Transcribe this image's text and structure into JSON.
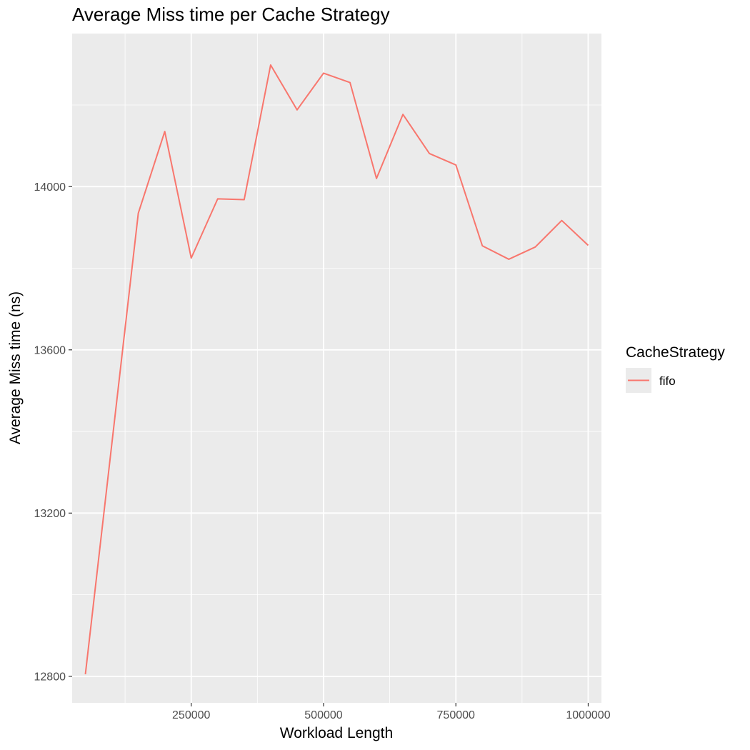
{
  "chart_data": {
    "type": "line",
    "title": "Average Miss time per Cache Strategy",
    "xlabel": "Workload Length",
    "ylabel": "Average Miss time (ns)",
    "xlim": [
      25000,
      1025000
    ],
    "ylim": [
      12735,
      14375
    ],
    "x_ticks": [
      250000,
      500000,
      750000,
      1000000
    ],
    "x_tick_labels": [
      "250000",
      "500000",
      "750000",
      "1000000"
    ],
    "y_ticks": [
      12800,
      13200,
      13600,
      14000
    ],
    "y_tick_labels": [
      "12800",
      "13200",
      "13600",
      "14000"
    ],
    "grid": true,
    "legend": {
      "title": "CacheStrategy",
      "position": "right"
    },
    "series": [
      {
        "name": "fifo",
        "color": "#F8766D",
        "x": [
          50000,
          150000,
          200000,
          250000,
          300000,
          350000,
          400000,
          450000,
          500000,
          550000,
          600000,
          650000,
          700000,
          750000,
          800000,
          850000,
          900000,
          950000,
          1000000
        ],
        "y": [
          12805,
          13935,
          14135,
          13825,
          13970,
          13968,
          14298,
          14188,
          14278,
          14255,
          14020,
          14177,
          14081,
          14053,
          13855,
          13822,
          13852,
          13917,
          13856
        ]
      }
    ]
  }
}
